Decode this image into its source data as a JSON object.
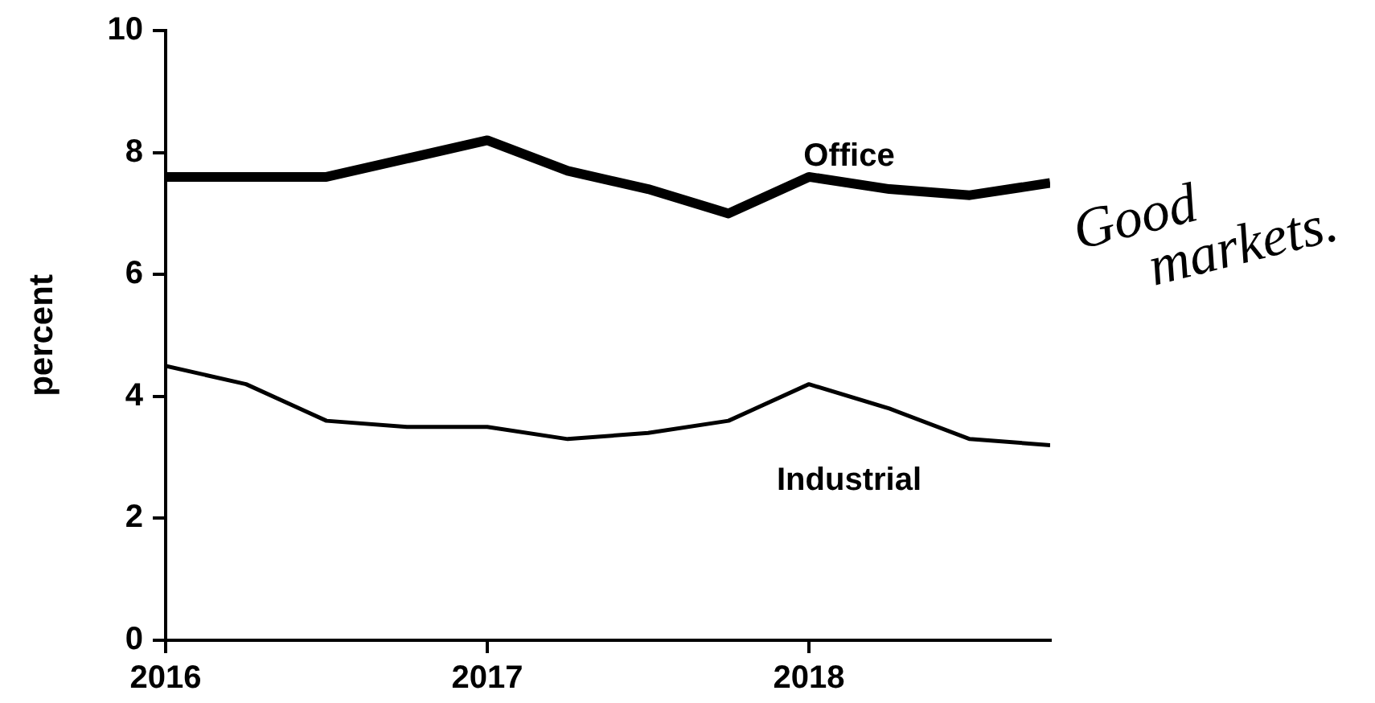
{
  "chart_data": {
    "type": "line",
    "ylabel": "percent",
    "x": [
      2016,
      2016.25,
      2016.5,
      2016.75,
      2017,
      2017.25,
      2017.5,
      2017.75,
      2018,
      2018.25,
      2018.5,
      2018.75
    ],
    "series": [
      {
        "name": "Office",
        "color": "#000000",
        "values": [
          7.6,
          7.6,
          7.6,
          7.9,
          8.2,
          7.7,
          7.4,
          7.0,
          7.6,
          7.4,
          7.3,
          7.5
        ]
      },
      {
        "name": "Industrial",
        "color": "#000000",
        "values": [
          4.5,
          4.2,
          3.6,
          3.5,
          3.5,
          3.3,
          3.4,
          3.6,
          4.2,
          3.8,
          3.3,
          3.2
        ]
      }
    ],
    "xlim": [
      2016,
      2018.75
    ],
    "xticks": [
      2016,
      2017,
      2018
    ],
    "ylim": [
      0,
      10
    ],
    "yticks": [
      0,
      2,
      4,
      6,
      8,
      10
    ],
    "annotations": [
      "Good markets."
    ]
  }
}
